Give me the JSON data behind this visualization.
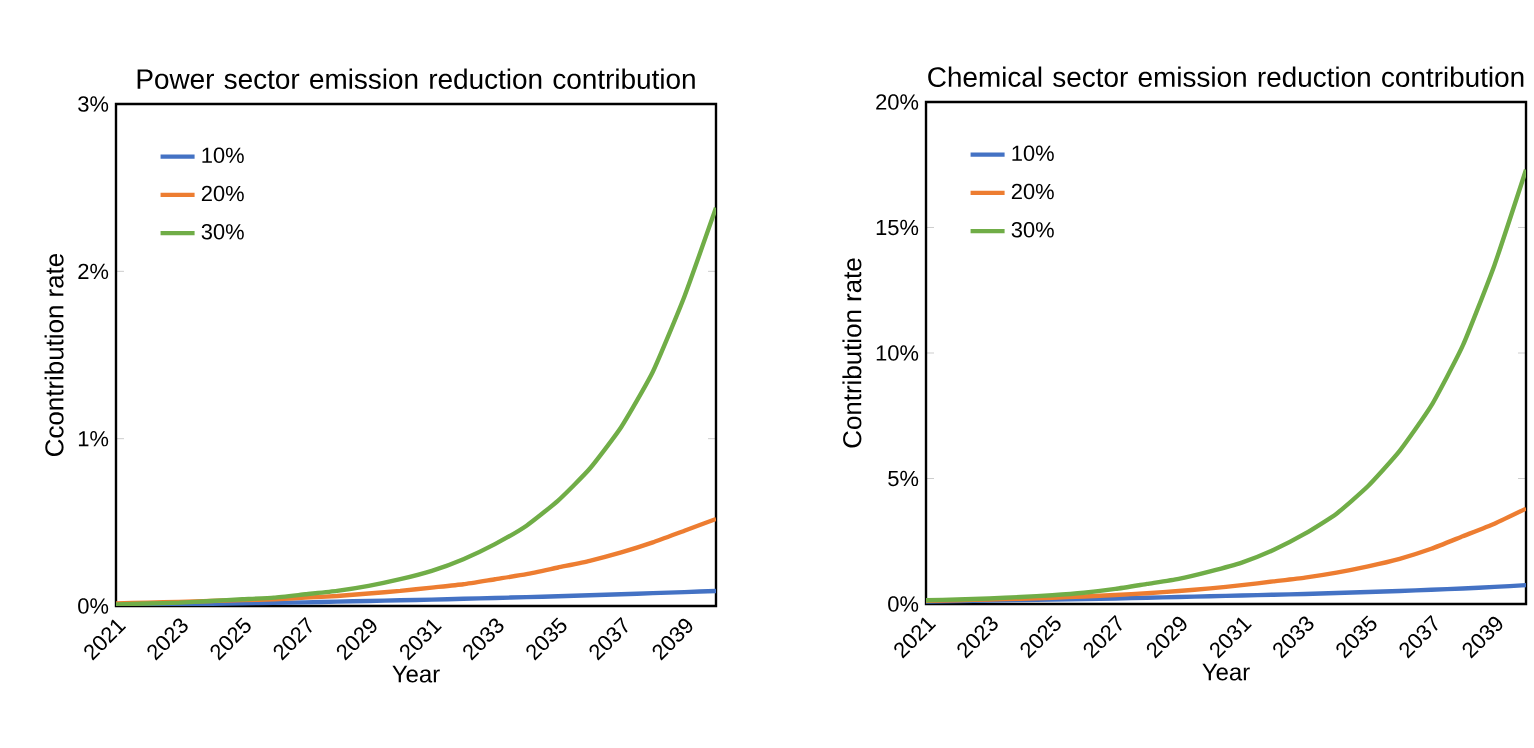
{
  "chart_data": [
    {
      "type": "line",
      "title": "Power sector emission reduction contribution",
      "xlabel": "Year",
      "ylabel": "Ccontribution rate",
      "x": [
        2021,
        2022,
        2023,
        2024,
        2025,
        2026,
        2027,
        2028,
        2029,
        2030,
        2031,
        2032,
        2033,
        2034,
        2035,
        2036,
        2037,
        2038,
        2039,
        2040
      ],
      "xlim": [
        2021,
        2040
      ],
      "xticks": [
        2021,
        2023,
        2025,
        2027,
        2029,
        2031,
        2033,
        2035,
        2037,
        2039
      ],
      "ylim": [
        0,
        3
      ],
      "yticks": [
        {
          "value": 0,
          "label": "0%"
        },
        {
          "value": 1,
          "label": "1%"
        },
        {
          "value": 2,
          "label": "2%"
        },
        {
          "value": 3,
          "label": "3%"
        }
      ],
      "legend": "top left",
      "grid": false,
      "series": [
        {
          "name": "10%",
          "color": "#4472c4",
          "values": [
            0.005,
            0.008,
            0.01,
            0.013,
            0.016,
            0.019,
            0.022,
            0.026,
            0.03,
            0.034,
            0.038,
            0.043,
            0.048,
            0.053,
            0.058,
            0.064,
            0.07,
            0.077,
            0.083,
            0.09
          ]
        },
        {
          "name": "20%",
          "color": "#ed7d31",
          "values": [
            0.015,
            0.02,
            0.025,
            0.03,
            0.035,
            0.04,
            0.05,
            0.06,
            0.075,
            0.09,
            0.11,
            0.13,
            0.16,
            0.19,
            0.23,
            0.27,
            0.32,
            0.38,
            0.45,
            0.52
          ]
        },
        {
          "name": "30%",
          "color": "#70ad47",
          "values": [
            0.01,
            0.015,
            0.02,
            0.03,
            0.04,
            0.05,
            0.07,
            0.09,
            0.12,
            0.16,
            0.21,
            0.28,
            0.37,
            0.48,
            0.63,
            0.82,
            1.07,
            1.4,
            1.85,
            2.38
          ]
        }
      ]
    },
    {
      "type": "line",
      "title": "Chemical sector emission reduction contribution",
      "xlabel": "Year",
      "ylabel": "Contribution rate",
      "x": [
        2021,
        2022,
        2023,
        2024,
        2025,
        2026,
        2027,
        2028,
        2029,
        2030,
        2031,
        2032,
        2033,
        2034,
        2035,
        2036,
        2037,
        2038,
        2039,
        2040
      ],
      "xlim": [
        2021,
        2040
      ],
      "xticks": [
        2021,
        2023,
        2025,
        2027,
        2029,
        2031,
        2033,
        2035,
        2037,
        2039
      ],
      "ylim": [
        0,
        20
      ],
      "yticks": [
        {
          "value": 0,
          "label": "0%"
        },
        {
          "value": 5,
          "label": "5%"
        },
        {
          "value": 10,
          "label": "10%"
        },
        {
          "value": 15,
          "label": "15%"
        },
        {
          "value": 20,
          "label": "20%"
        }
      ],
      "legend": "top left",
      "grid": false,
      "series": [
        {
          "name": "10%",
          "color": "#4472c4",
          "values": [
            0.1,
            0.12,
            0.14,
            0.16,
            0.18,
            0.2,
            0.22,
            0.25,
            0.28,
            0.31,
            0.34,
            0.37,
            0.4,
            0.44,
            0.48,
            0.52,
            0.57,
            0.62,
            0.68,
            0.75
          ]
        },
        {
          "name": "20%",
          "color": "#ed7d31",
          "values": [
            0.13,
            0.15,
            0.18,
            0.21,
            0.25,
            0.3,
            0.36,
            0.43,
            0.52,
            0.62,
            0.75,
            0.9,
            1.05,
            1.25,
            1.5,
            1.8,
            2.2,
            2.7,
            3.2,
            3.8
          ]
        },
        {
          "name": "30%",
          "color": "#70ad47",
          "values": [
            0.15,
            0.18,
            0.22,
            0.28,
            0.35,
            0.45,
            0.6,
            0.8,
            1.0,
            1.3,
            1.65,
            2.15,
            2.8,
            3.6,
            4.7,
            6.1,
            7.9,
            10.3,
            13.5,
            17.3
          ]
        }
      ]
    }
  ]
}
